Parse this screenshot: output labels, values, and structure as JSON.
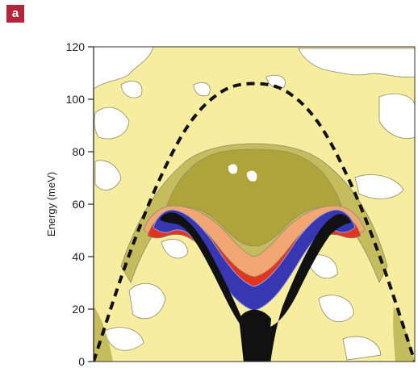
{
  "panel_label": "a",
  "chart_data": {
    "type": "heatmap",
    "title": "",
    "xlabel": "",
    "ylabel": "Energy (meV)",
    "ylim": [
      0,
      120
    ],
    "yticks": [
      {
        "value": 0,
        "label": "0"
      },
      {
        "value": 20,
        "label": "20"
      },
      {
        "value": 40,
        "label": "40"
      },
      {
        "value": 60,
        "label": "60"
      },
      {
        "value": 80,
        "label": "80"
      },
      {
        "value": 100,
        "label": "100"
      },
      {
        "value": 120,
        "label": "120"
      }
    ],
    "xlim": [
      0,
      1
    ],
    "x_ticks_visible": false,
    "dispersion_overlay": {
      "style": "dashed",
      "color": "#111111",
      "x": [
        0.0,
        0.1,
        0.2,
        0.3,
        0.4,
        0.5,
        0.6,
        0.7,
        0.8,
        0.9,
        1.0
      ],
      "y": [
        0,
        37,
        68,
        91,
        103,
        106,
        103,
        91,
        68,
        37,
        0
      ]
    },
    "intensity_colors": [
      "#ffffff",
      "#f5e99a",
      "#c9c06e",
      "#b0a93a",
      "#f0a070",
      "#e03020",
      "#3a3ab0",
      "#101010"
    ],
    "grid": false,
    "legend": "none"
  }
}
